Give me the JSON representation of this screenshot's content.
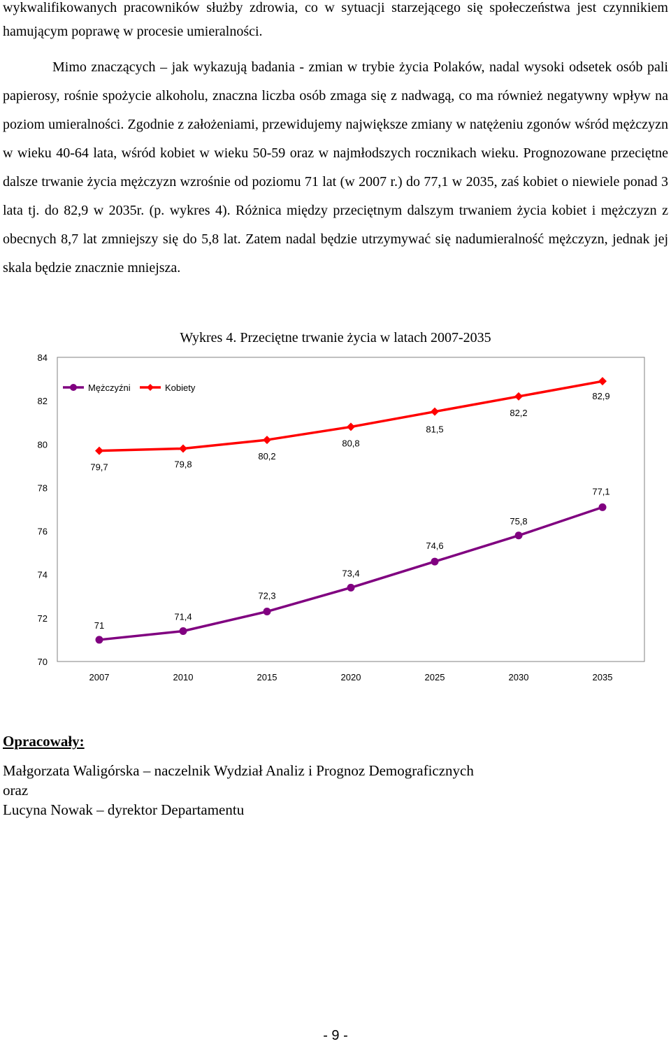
{
  "paragraphs": {
    "p1": "wykwalifikowanych pracowników służby zdrowia, co w sytuacji starzejącego się społeczeństwa jest czynnikiem hamującym poprawę w procesie umieralności.",
    "p2": "Mimo znaczących – jak wykazują badania - zmian w trybie życia Polaków, nadal wysoki odsetek osób pali papierosy, rośnie spożycie alkoholu, znaczna liczba osób zmaga się z nadwagą, co ma również negatywny wpływ na poziom umieralności. Zgodnie z założeniami, przewidujemy największe zmiany w natężeniu zgonów wśród mężczyzn w wieku 40-64 lata, wśród kobiet w wieku 50-59 oraz w najmłodszych rocznikach wieku. Prognozowane przeciętne dalsze trwanie życia mężczyzn wzrośnie od poziomu 71 lat (w 2007 r.) do 77,1 w 2035, zaś kobiet o niewiele ponad 3 lata tj. do 82,9 w 2035r. (p. wykres 4). Różnica między przeciętnym dalszym trwaniem życia kobiet i mężczyzn z obecnych 8,7 lat zmniejszy się do 5,8 lat. Zatem nadal będzie utrzymywać się nadumieralność mężczyzn, jednak jej skala będzie znacznie mniejsza."
  },
  "chart_data": {
    "type": "line",
    "title": "Wykres 4. Przeciętne trwanie życia w latach 2007-2035",
    "categories": [
      "2007",
      "2010",
      "2015",
      "2020",
      "2025",
      "2030",
      "2035"
    ],
    "ylim": [
      70,
      84
    ],
    "yticks": [
      "70",
      "72",
      "74",
      "76",
      "78",
      "80",
      "82",
      "84"
    ],
    "legend_position": "top-left",
    "grid": false,
    "series": [
      {
        "name": "Mężczyźni",
        "color": "#800080",
        "marker": "circle",
        "values": [
          71,
          71.4,
          72.3,
          73.4,
          74.6,
          75.8,
          77.1
        ],
        "labels": [
          "71",
          "71,4",
          "72,3",
          "73,4",
          "74,6",
          "75,8",
          "77,1"
        ]
      },
      {
        "name": "Kobiety",
        "color": "#ff0000",
        "marker": "diamond",
        "values": [
          79.7,
          79.8,
          80.2,
          80.8,
          81.5,
          82.2,
          82.9
        ],
        "labels": [
          "79,7",
          "79,8",
          "80,2",
          "80,8",
          "81,5",
          "82,2",
          "82,9"
        ]
      }
    ]
  },
  "credits": {
    "heading": "Opracowały:",
    "line1": "Małgorzata Waligórska – naczelnik Wydział Analiz i Prognoz Demograficznych",
    "line2": "oraz",
    "line3": "Lucyna Nowak – dyrektor Departamentu"
  },
  "page_number": "- 9 -"
}
